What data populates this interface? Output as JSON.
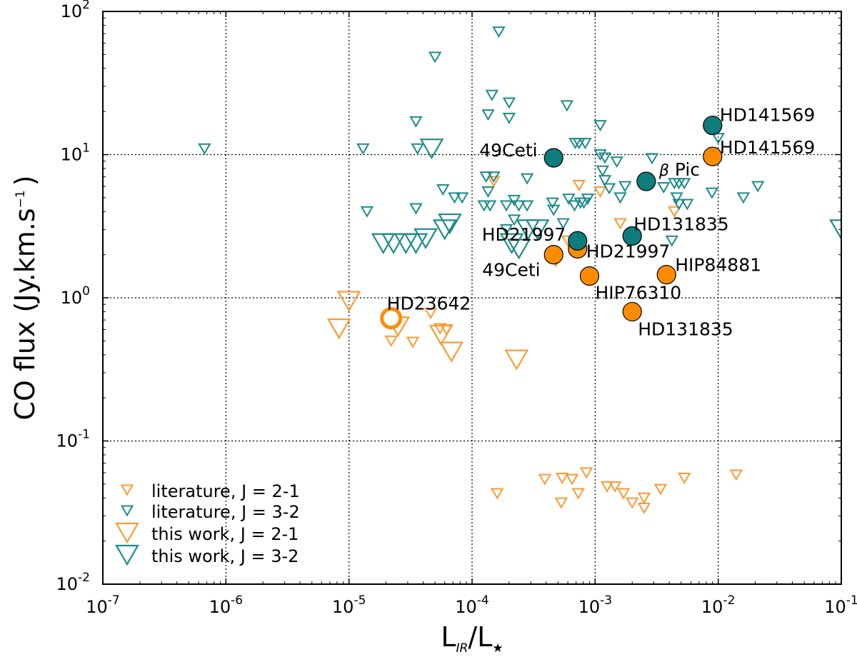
{
  "chart_data": {
    "type": "scatter",
    "xscale": "log",
    "yscale": "log",
    "xlim": [
      1e-07,
      0.1
    ],
    "ylim": [
      0.01,
      100
    ],
    "grid": true,
    "x_ticks": [
      {
        "base": "10",
        "exp": "-7",
        "value": 1e-07
      },
      {
        "base": "10",
        "exp": "-6",
        "value": 1e-06
      },
      {
        "base": "10",
        "exp": "-5",
        "value": 1e-05
      },
      {
        "base": "10",
        "exp": "-4",
        "value": 0.0001
      },
      {
        "base": "10",
        "exp": "-3",
        "value": 0.001
      },
      {
        "base": "10",
        "exp": "-2",
        "value": 0.01
      },
      {
        "base": "10",
        "exp": "-1",
        "value": 0.1
      }
    ],
    "y_ticks": [
      {
        "base": "10",
        "exp": "-2",
        "value": 0.01
      },
      {
        "base": "10",
        "exp": "-1",
        "value": 0.1
      },
      {
        "base": "10",
        "exp": "0",
        "value": 1
      },
      {
        "base": "10",
        "exp": "1",
        "value": 10
      },
      {
        "base": "10",
        "exp": "2",
        "value": 100
      }
    ],
    "xlabel": {
      "main": "L",
      "sub1": "IR",
      "mid": "/L",
      "sub2": "★"
    },
    "ylabel": {
      "main": "CO flux (Jy.km.s",
      "sup": "−1",
      "end": ")"
    },
    "colors": {
      "orange": "#ff9933",
      "orange_fill": "#ff8c00",
      "teal": "#1e8b8b",
      "teal_fill": "#0e7c7b"
    },
    "legend": {
      "location": "lower-left",
      "entries": [
        {
          "label": "literature, J = 2-1",
          "marker": "small-triangle",
          "color": "orange"
        },
        {
          "label": "literature, J = 3-2",
          "marker": "small-triangle",
          "color": "teal"
        },
        {
          "label": "this work, J = 2-1",
          "marker": "large-triangle",
          "color": "orange"
        },
        {
          "label": "this work, J = 3-2",
          "marker": "large-triangle",
          "color": "teal"
        }
      ]
    },
    "series": [
      {
        "name": "literature, J = 2-1",
        "marker": "small-triangle",
        "color": "orange",
        "points": [
          [
            2.2e-05,
            0.5
          ],
          [
            3.3e-05,
            0.49
          ],
          [
            5.5e-05,
            0.61
          ],
          [
            6.2e-05,
            0.6
          ],
          [
            4.6e-05,
            0.78
          ],
          [
            0.00015,
            6.5
          ],
          [
            0.00074,
            6.1
          ],
          [
            0.0011,
            5.5
          ],
          [
            0.0044,
            4.0
          ],
          [
            0.0016,
            3.3
          ],
          [
            0.0006,
            2.5
          ],
          [
            0.0007,
            2.4
          ],
          [
            0.00048,
            1.8
          ],
          [
            0.00016,
            0.043
          ],
          [
            0.00039,
            0.054
          ],
          [
            0.00054,
            0.055
          ],
          [
            0.00065,
            0.054
          ],
          [
            0.00085,
            0.06
          ],
          [
            0.00053,
            0.037
          ],
          [
            0.00073,
            0.043
          ],
          [
            0.00125,
            0.048
          ],
          [
            0.00145,
            0.048
          ],
          [
            0.0017,
            0.043
          ],
          [
            0.002,
            0.037
          ],
          [
            0.0025,
            0.034
          ],
          [
            0.0025,
            0.04
          ],
          [
            0.0034,
            0.046
          ],
          [
            0.0053,
            0.055
          ],
          [
            0.014,
            0.058
          ]
        ]
      },
      {
        "name": "literature, J = 3-2",
        "marker": "small-triangle",
        "color": "teal",
        "points": [
          [
            6.7e-07,
            11
          ],
          [
            1.3e-05,
            11
          ],
          [
            1.4e-05,
            4.0
          ],
          [
            3.5e-05,
            17
          ],
          [
            3.6e-05,
            11
          ],
          [
            3.5e-05,
            4.2
          ],
          [
            5e-05,
            48
          ],
          [
            5.8e-05,
            5.7
          ],
          [
            7.2e-05,
            5.0
          ],
          [
            8.3e-05,
            5.0
          ],
          [
            0.000165,
            72
          ],
          [
            0.000145,
            26
          ],
          [
            0.000135,
            19
          ],
          [
            0.0002,
            23
          ],
          [
            0.0002,
            18
          ],
          [
            0.00013,
            7.0
          ],
          [
            0.00015,
            7.0
          ],
          [
            0.000135,
            5.5
          ],
          [
            0.000125,
            4.4
          ],
          [
            0.00014,
            4.4
          ],
          [
            0.00019,
            4.4
          ],
          [
            0.00022,
            4.8
          ],
          [
            0.00024,
            4.4
          ],
          [
            0.00028,
            4.4
          ],
          [
            0.00028,
            6.8
          ],
          [
            0.00022,
            3.5
          ],
          [
            0.00019,
            3.0
          ],
          [
            0.00045,
            4.6
          ],
          [
            0.00046,
            4.1
          ],
          [
            0.00059,
            22
          ],
          [
            0.00069,
            12
          ],
          [
            0.00074,
            12
          ],
          [
            0.00083,
            12
          ],
          [
            0.00061,
            4.9
          ],
          [
            0.00068,
            4.4
          ],
          [
            0.00076,
            4.6
          ],
          [
            0.00081,
            4.6
          ],
          [
            0.00087,
            4.9
          ],
          [
            0.00055,
            3.3
          ],
          [
            0.0011,
            16
          ],
          [
            0.0011,
            10
          ],
          [
            0.0012,
            9.5
          ],
          [
            0.00115,
            7.7
          ],
          [
            0.0012,
            6.6
          ],
          [
            0.0013,
            5.8
          ],
          [
            0.0015,
            8.9
          ],
          [
            0.00175,
            6.0
          ],
          [
            0.0016,
            5.0
          ],
          [
            0.0029,
            9.4
          ],
          [
            0.0036,
            5.9
          ],
          [
            0.0044,
            6.3
          ],
          [
            0.0046,
            5.0
          ],
          [
            0.0048,
            6.3
          ],
          [
            0.0048,
            4.5
          ],
          [
            0.0053,
            6.3
          ],
          [
            0.0056,
            4.5
          ],
          [
            0.0042,
            2.5
          ],
          [
            0.01,
            13
          ],
          [
            0.0089,
            5.4
          ],
          [
            0.016,
            5.0
          ],
          [
            0.021,
            6.0
          ]
        ]
      },
      {
        "name": "this work, J = 2-1",
        "marker": "large-triangle",
        "color": "orange",
        "points": [
          [
            1e-05,
            0.95
          ],
          [
            8.3e-06,
            0.61
          ],
          [
            2.5e-05,
            0.63
          ],
          [
            5.6e-05,
            0.55
          ],
          [
            6.8e-05,
            0.42
          ],
          [
            0.00023,
            0.37
          ]
        ]
      },
      {
        "name": "this work, J = 3-2",
        "marker": "large-triangle",
        "color": "teal",
        "points": [
          [
            1.9e-05,
            2.4
          ],
          [
            2.3e-05,
            2.4
          ],
          [
            2.9e-05,
            2.4
          ],
          [
            3.5e-05,
            2.4
          ],
          [
            4.2e-05,
            2.6
          ],
          [
            4.7e-05,
            11
          ],
          [
            6e-05,
            3.0
          ],
          [
            6.6e-05,
            3.3
          ],
          [
            0.00021,
            2.4
          ],
          [
            0.00024,
            2.2
          ],
          [
            0.000285,
            3.0
          ],
          [
            0.00034,
            3.0
          ],
          [
            0.1,
            3.0
          ]
        ]
      },
      {
        "name": "detections, J = 2-1",
        "marker": "circle",
        "color": "orange",
        "points": [
          {
            "x": 2.2e-05,
            "y": 0.72,
            "label": "HD23642",
            "hollow": true
          },
          {
            "x": 0.00046,
            "y": 2.0,
            "label": "49Ceti"
          },
          {
            "x": 0.00072,
            "y": 2.2,
            "label": "HD21997"
          },
          {
            "x": 0.0009,
            "y": 1.42,
            "label": "HIP76310"
          },
          {
            "x": 0.0038,
            "y": 1.45,
            "label": "HIP84881"
          },
          {
            "x": 0.002,
            "y": 0.8,
            "label": "HD131835"
          },
          {
            "x": 0.009,
            "y": 9.7,
            "label": "HD141569"
          }
        ]
      },
      {
        "name": "detections, J = 3-2",
        "marker": "circle",
        "color": "teal",
        "points": [
          {
            "x": 0.00046,
            "y": 9.5,
            "label": "49Ceti"
          },
          {
            "x": 0.00072,
            "y": 2.5,
            "label": "HD21997"
          },
          {
            "x": 0.002,
            "y": 2.7,
            "label": "HD131835"
          },
          {
            "x": 0.0026,
            "y": 6.5,
            "label": "β Pic"
          },
          {
            "x": 0.009,
            "y": 16,
            "label": "HD141569"
          }
        ]
      }
    ]
  }
}
